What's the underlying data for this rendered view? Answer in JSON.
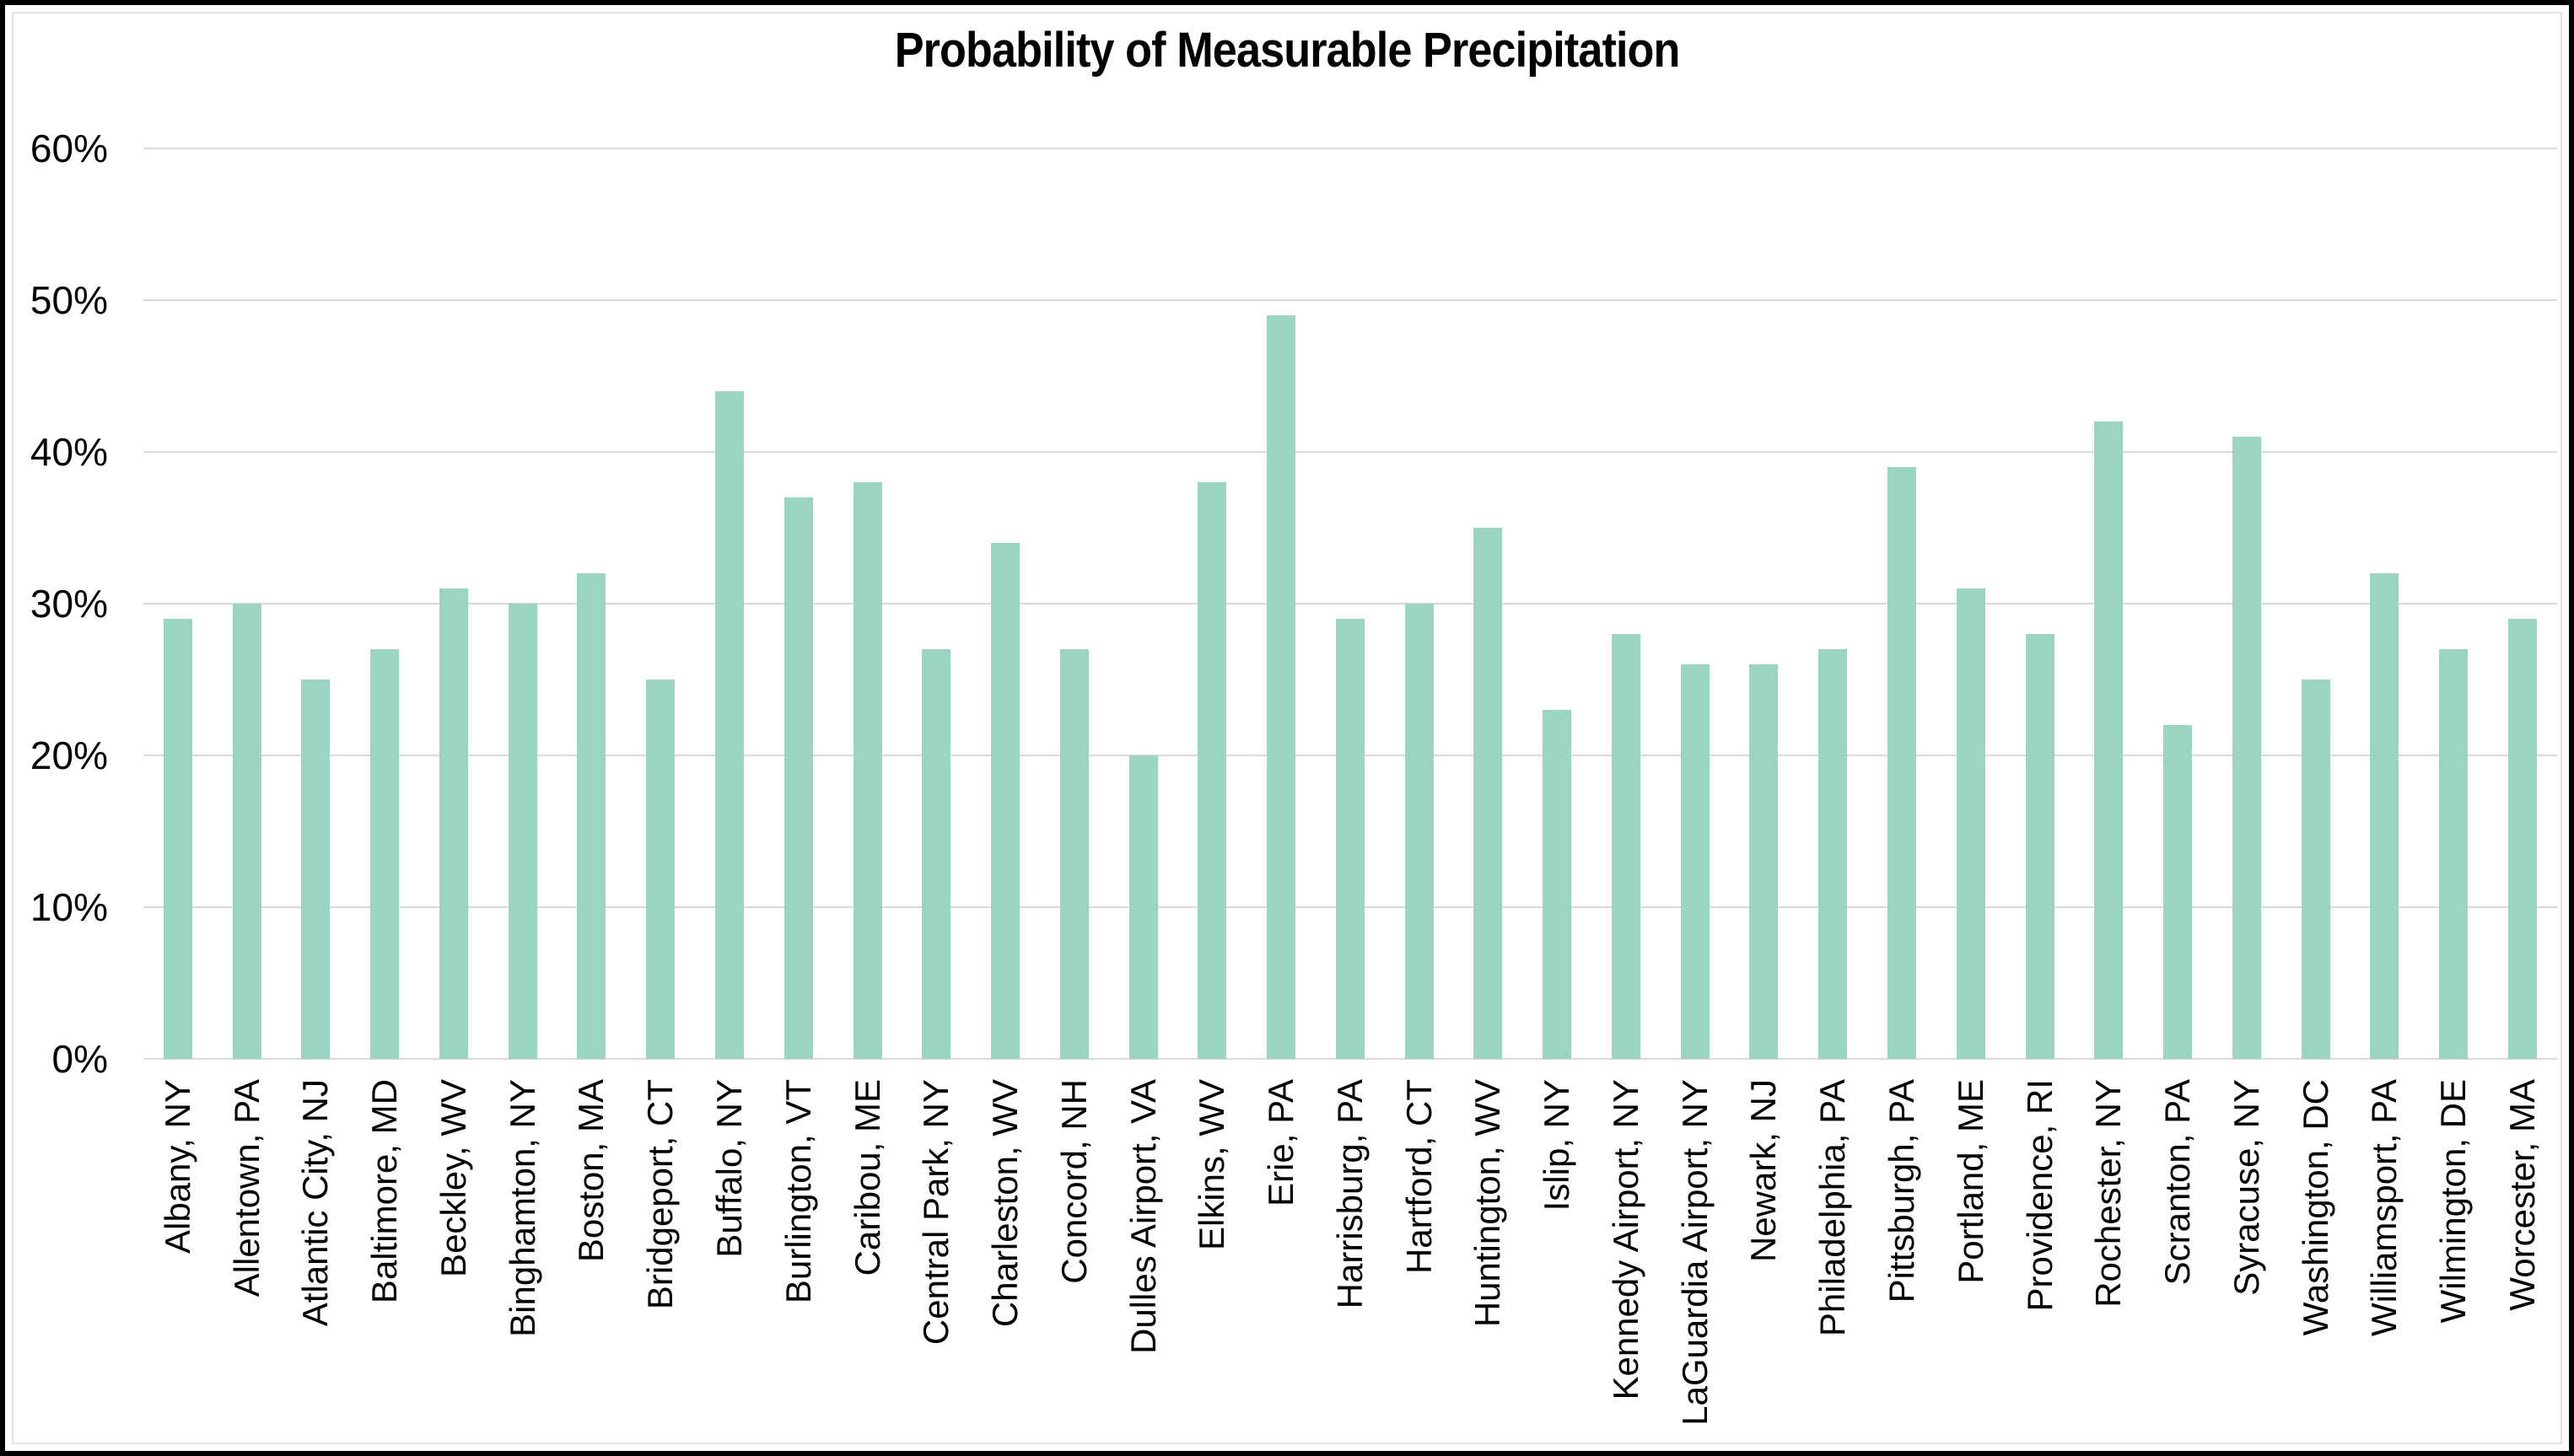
{
  "chart_data": {
    "type": "bar",
    "title": "Probability of Measurable Precipitation",
    "xlabel": "",
    "ylabel": "",
    "ylim": [
      0,
      60
    ],
    "ytick_step": 10,
    "ytick_labels": [
      "0%",
      "10%",
      "20%",
      "30%",
      "40%",
      "50%",
      "60%"
    ],
    "grid": true,
    "legend": false,
    "bar_color": "#9ad5c4",
    "gridline_color": "#d9d9d9",
    "categories": [
      "Albany, NY",
      "Allentown, PA",
      "Atlantic City, NJ",
      "Baltimore, MD",
      "Beckley, WV",
      "Binghamton, NY",
      "Boston, MA",
      "Bridgeport, CT",
      "Buffalo, NY",
      "Burlington, VT",
      "Caribou, ME",
      "Central Park, NY",
      "Charleston, WV",
      "Concord, NH",
      "Dulles Airport, VA",
      "Elkins, WV",
      "Erie, PA",
      "Harrisburg, PA",
      "Hartford, CT",
      "Huntington, WV",
      "Islip, NY",
      "Kennedy Airport, NY",
      "LaGuardia Airport, NY",
      "Newark, NJ",
      "Philadelphia, PA",
      "Pittsburgh, PA",
      "Portland, ME",
      "Providence, RI",
      "Rochester, NY",
      "Scranton, PA",
      "Syracuse, NY",
      "Washington, DC",
      "Williamsport, PA",
      "Wilmington, DE",
      "Worcester, MA"
    ],
    "values": [
      29,
      30,
      25,
      27,
      31,
      30,
      32,
      25,
      44,
      37,
      38,
      27,
      34,
      27,
      20,
      38,
      49,
      29,
      30,
      35,
      23,
      28,
      26,
      26,
      27,
      39,
      31,
      28,
      42,
      22,
      41,
      25,
      32,
      27,
      29
    ],
    "values_unit": "%"
  }
}
